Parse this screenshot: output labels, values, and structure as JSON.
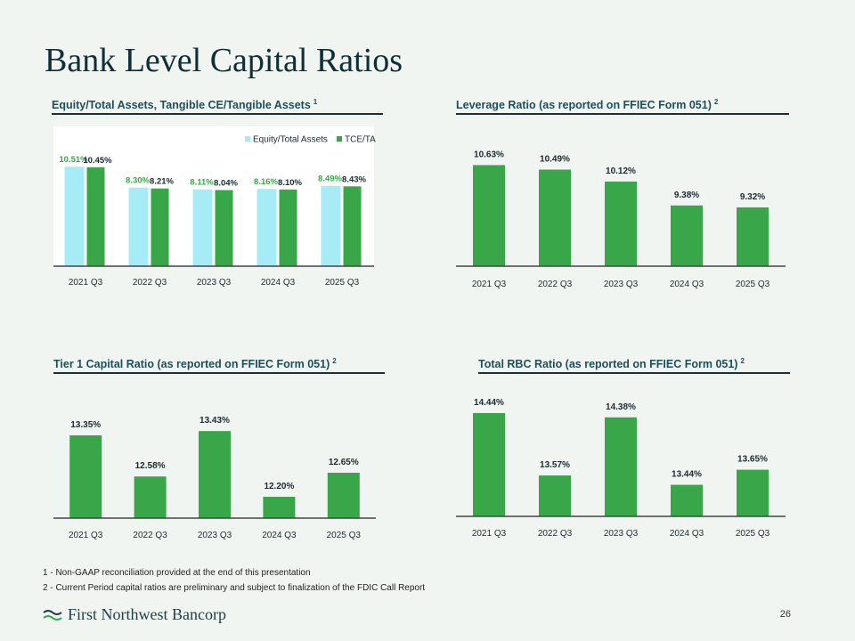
{
  "page": {
    "title": "Bank Level Capital Ratios",
    "page_number": "26"
  },
  "colors": {
    "green": "#3aa64a",
    "light_blue": "#a6ecf6",
    "label_green": "#3aa64a",
    "label_dark": "#1b2a30"
  },
  "footnotes": [
    "1 - Non-GAAP reconciliation provided at the end of this presentation",
    "2 - Current Period capital ratios are preliminary and subject to finalization of the FDIC Call Report"
  ],
  "logo": {
    "text": "First Northwest Bancorp"
  },
  "chart_data": [
    {
      "type": "bar",
      "title": "Equity/Total Assets, Tangible CE/Tangible Assets",
      "title_note": "1",
      "categories": [
        "2021 Q3",
        "2022 Q3",
        "2023 Q3",
        "2024 Q3",
        "2025 Q3"
      ],
      "series": [
        {
          "name": "Equity/Total Assets",
          "values": [
            10.51,
            8.3,
            8.11,
            8.16,
            8.49
          ],
          "labels": [
            "10.51%",
            "8.30%",
            "8.11%",
            "8.16%",
            "8.49%"
          ]
        },
        {
          "name": "TCE/TA",
          "values": [
            10.45,
            8.21,
            8.04,
            8.1,
            8.43
          ],
          "labels": [
            "10.45%",
            "8.21%",
            "8.04%",
            "8.10%",
            "8.43%"
          ]
        }
      ],
      "legend": "top-right",
      "ylim": [
        0,
        11
      ]
    },
    {
      "type": "bar",
      "title": "Leverage Ratio (as reported on FFIEC Form 051)",
      "title_note": "2",
      "categories": [
        "2021 Q3",
        "2022 Q3",
        "2023 Q3",
        "2024 Q3",
        "2025 Q3"
      ],
      "values": [
        10.63,
        10.49,
        10.12,
        9.38,
        9.32
      ],
      "labels": [
        "10.63%",
        "10.49%",
        "10.12%",
        "9.38%",
        "9.32%"
      ],
      "ylim": [
        7.5,
        11.0
      ]
    },
    {
      "type": "bar",
      "title": "Tier 1 Capital Ratio (as reported on FFIEC Form 051)",
      "title_note": "2",
      "categories": [
        "2021 Q3",
        "2022 Q3",
        "2023 Q3",
        "2024 Q3",
        "2025 Q3"
      ],
      "values": [
        13.35,
        12.58,
        13.43,
        12.2,
        12.65
      ],
      "labels": [
        "13.35%",
        "12.58%",
        "13.43%",
        "12.20%",
        "12.65%"
      ],
      "ylim": [
        11.8,
        13.8
      ]
    },
    {
      "type": "bar",
      "title": "Total RBC Ratio (as reported on FFIEC Form 051)",
      "title_note": "2",
      "categories": [
        "2021 Q3",
        "2022 Q3",
        "2023 Q3",
        "2024 Q3",
        "2025 Q3"
      ],
      "values": [
        14.44,
        13.57,
        14.38,
        13.44,
        13.65
      ],
      "labels": [
        "14.44%",
        "13.57%",
        "14.38%",
        "13.44%",
        "13.65%"
      ],
      "ylim": [
        13.0,
        14.7
      ]
    }
  ]
}
